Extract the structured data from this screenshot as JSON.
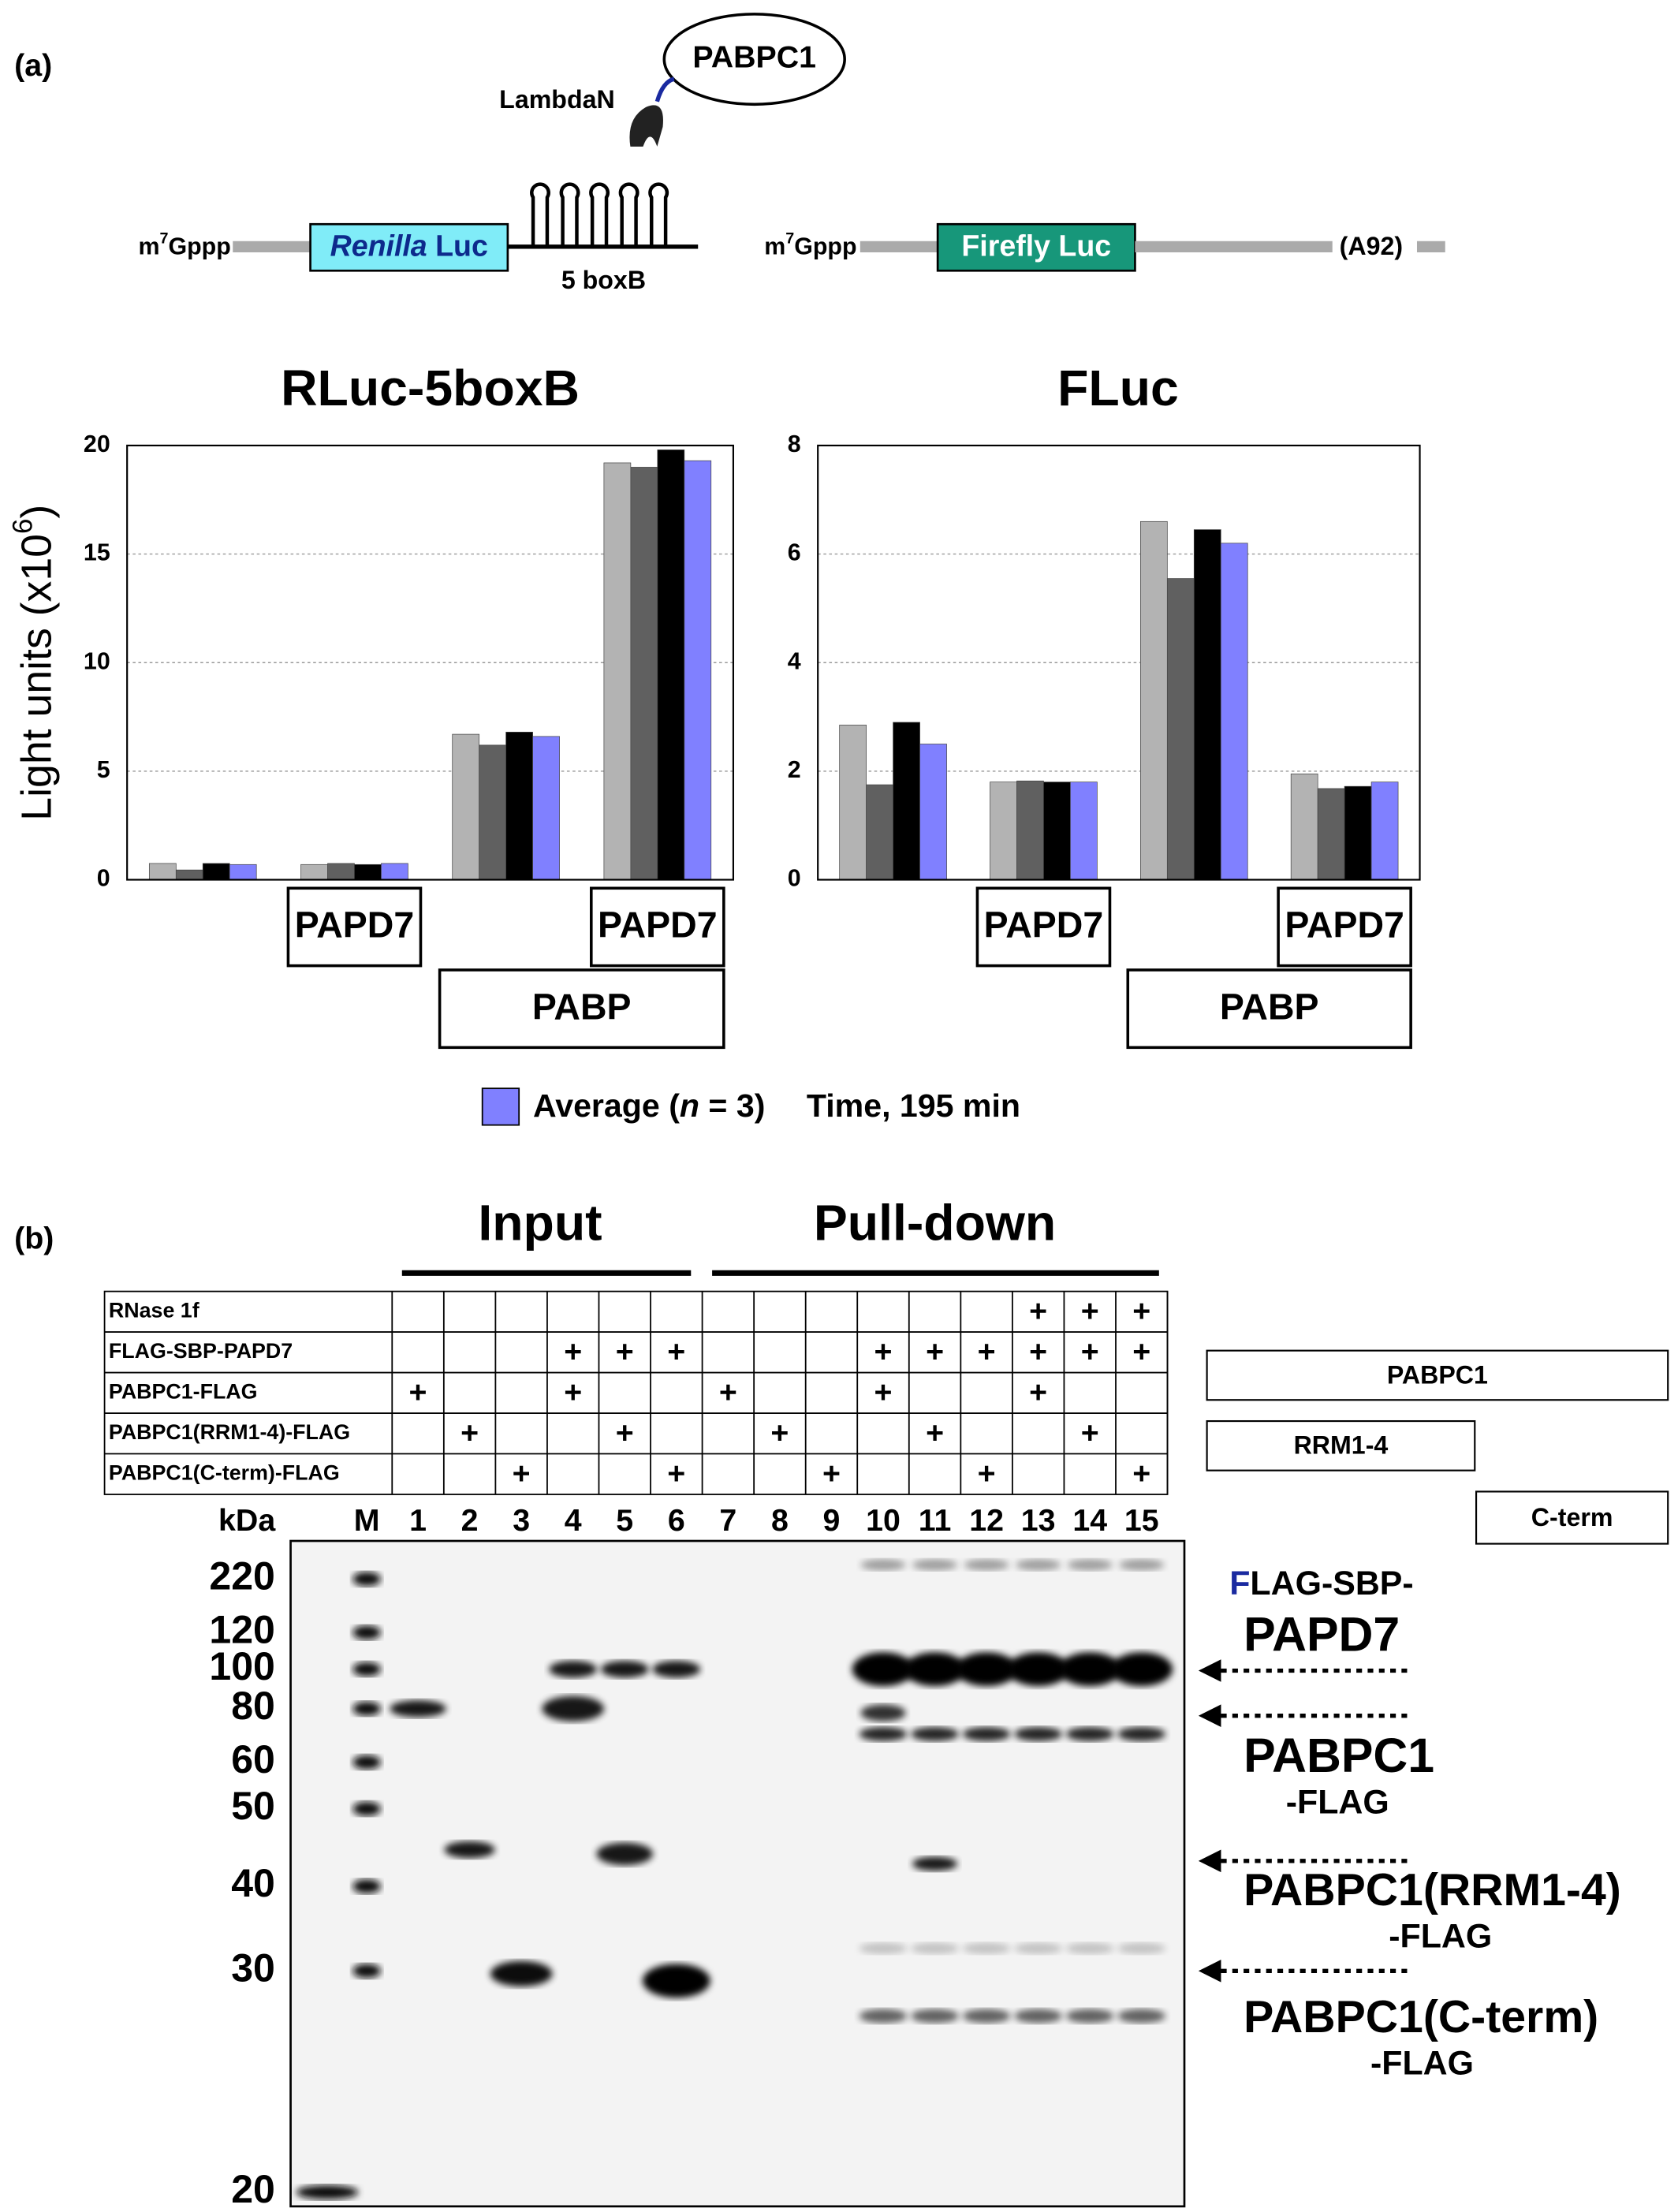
{
  "panel_a": {
    "label": "(a)",
    "pabpc1": "PABPC1",
    "lambdan": "LambdaN",
    "renilla_cap": [
      "m",
      "7",
      "Gppp"
    ],
    "renilla_box": [
      "Renilla",
      " Luc"
    ],
    "boxb": "5 boxB",
    "firefly_cap": [
      "m",
      "7",
      "Gppp"
    ],
    "firefly_box": "Firefly Luc",
    "polya": "(A92)"
  },
  "chart_data": [
    {
      "type": "bar",
      "title": "RLuc-5boxB",
      "ylabel": [
        "Light units (x10",
        "6",
        ")"
      ],
      "categories": [
        null,
        null,
        null,
        null
      ],
      "series": [
        {
          "color": "#b3b3b3",
          "values": [
            0.75,
            0.7,
            6.7,
            19.2
          ]
        },
        {
          "color": "#606060",
          "values": [
            0.45,
            0.75,
            6.2,
            19.0
          ]
        },
        {
          "color": "#000000",
          "values": [
            0.75,
            0.7,
            6.8,
            19.8
          ]
        },
        {
          "color": "#8080ff",
          "values": [
            0.7,
            0.75,
            6.6,
            19.3
          ]
        }
      ],
      "ylim": [
        0,
        20
      ],
      "yticks": [
        0,
        5,
        10,
        15,
        20
      ],
      "grid": true,
      "category_boxes": [
        {
          "label": "PAPD7",
          "row": 0,
          "from": 1,
          "to": 1
        },
        {
          "label": "PAPD7",
          "row": 0,
          "from": 3,
          "to": 3
        },
        {
          "label": "PABP",
          "row": 1,
          "from": 2,
          "to": 3
        }
      ]
    },
    {
      "type": "bar",
      "title": "FLuc",
      "categories": [
        null,
        null,
        null,
        null
      ],
      "series": [
        {
          "color": "#b3b3b3",
          "values": [
            2.85,
            1.8,
            6.6,
            1.95
          ]
        },
        {
          "color": "#606060",
          "values": [
            1.75,
            1.82,
            5.55,
            1.68
          ]
        },
        {
          "color": "#000000",
          "values": [
            2.9,
            1.8,
            6.45,
            1.72
          ]
        },
        {
          "color": "#8080ff",
          "values": [
            2.5,
            1.8,
            6.2,
            1.8
          ]
        }
      ],
      "ylim": [
        0,
        8
      ],
      "yticks": [
        0,
        2,
        4,
        6,
        8
      ],
      "grid": true,
      "category_boxes": [
        {
          "label": "PAPD7",
          "row": 0,
          "from": 1,
          "to": 1
        },
        {
          "label": "PAPD7",
          "row": 0,
          "from": 3,
          "to": 3
        },
        {
          "label": "PABP",
          "row": 1,
          "from": 2,
          "to": 3
        }
      ]
    }
  ],
  "legend": {
    "label": [
      "Average (",
      "n",
      " = 3)"
    ],
    "time": "Time, 195 min"
  },
  "panel_b": {
    "label": "(b)",
    "input": "Input",
    "pulldown": "Pull-down",
    "table": {
      "rows": [
        {
          "label": "RNase 1f",
          "cells": [
            null,
            null,
            null,
            null,
            null,
            null,
            null,
            null,
            null,
            null,
            null,
            null,
            "+",
            "+",
            "+"
          ]
        },
        {
          "label": "FLAG-SBP-PAPD7",
          "cells": [
            null,
            null,
            null,
            "+",
            "+",
            "+",
            null,
            null,
            null,
            "+",
            "+",
            "+",
            "+",
            "+",
            "+"
          ]
        },
        {
          "label": "PABPC1-FLAG",
          "cells": [
            "+",
            null,
            null,
            "+",
            null,
            null,
            "+",
            null,
            null,
            "+",
            null,
            null,
            "+",
            null,
            null
          ]
        },
        {
          "label": "PABPC1(RRM1-4)-FLAG",
          "cells": [
            null,
            "+",
            null,
            null,
            "+",
            null,
            null,
            "+",
            null,
            null,
            "+",
            null,
            null,
            "+",
            null
          ]
        },
        {
          "label": "PABPC1(C-term)-FLAG",
          "cells": [
            null,
            null,
            "+",
            null,
            null,
            "+",
            null,
            null,
            "+",
            null,
            null,
            "+",
            null,
            null,
            "+"
          ]
        }
      ]
    },
    "kda": "kDa",
    "lanes": [
      "M",
      "1",
      "2",
      "3",
      "4",
      "5",
      "6",
      "7",
      "8",
      "9",
      "10",
      "11",
      "12",
      "13",
      "14",
      "15"
    ],
    "markers": [
      220,
      120,
      100,
      80,
      60,
      50,
      40,
      30,
      20
    ],
    "domains": [
      "PABPC1",
      "RRM1-4",
      "C-term"
    ],
    "papd7_prefix": [
      "F",
      "LAG-SBP-"
    ],
    "papd7": "PAPD7",
    "pabpc1": [
      "PABPC1",
      "-FLAG"
    ],
    "rrm": [
      "PABPC1(RRM1-4)",
      "-FLAG"
    ],
    "cterm": [
      "PABPC1(C-term)",
      "-FLAG"
    ]
  }
}
